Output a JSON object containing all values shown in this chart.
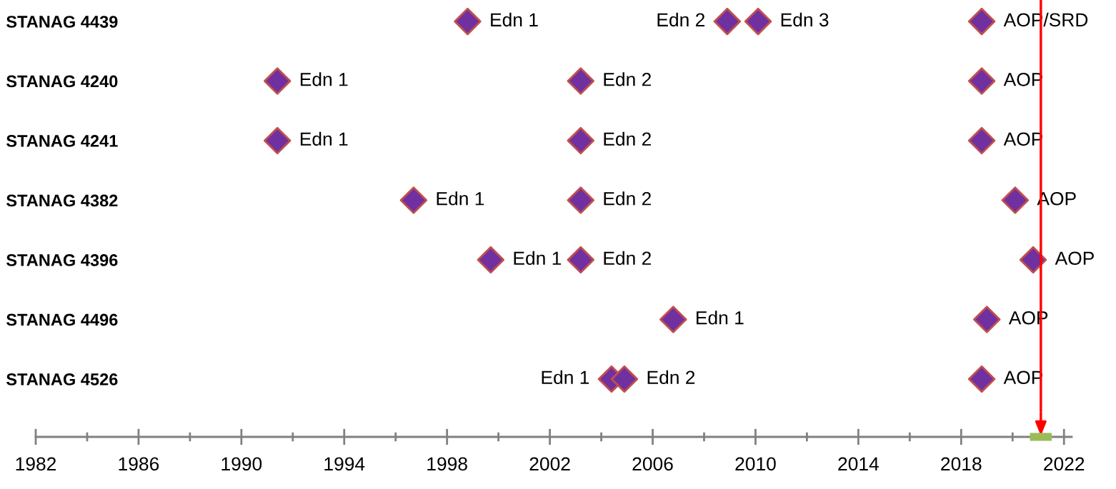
{
  "chart_data": {
    "type": "scatter",
    "categories": [
      "STANAG 4439",
      "STANAG 4240",
      "STANAG 4241",
      "STANAG 4382",
      "STANAG 4396",
      "STANAG 4496",
      "STANAG 4526"
    ],
    "orientation": "horizontal",
    "marker": "diamond",
    "tick_labels": "x",
    "grid": false,
    "xlim": [
      1982,
      2022.3
    ],
    "xticks": [
      1982,
      1986,
      1990,
      1994,
      1998,
      2002,
      2006,
      2010,
      2014,
      2018,
      2022
    ],
    "series": [
      {
        "color": "#7030a0",
        "values": [
          1998.8,
          1991.4,
          1991.4,
          1996.7,
          1999.7,
          2006.8,
          2004.4
        ],
        "value_labels": [
          "Edn 1",
          "Edn 1",
          "Edn 1",
          "Edn 1",
          "Edn 1",
          "Edn 1",
          "Edn 1"
        ]
      },
      {
        "color": "#7030a0",
        "values": [
          2008.9,
          2003.2,
          2003.2,
          2003.2,
          2003.2,
          2019.0,
          2004.9
        ],
        "value_labels": [
          "Edn 2",
          "Edn 2",
          "Edn 2",
          "Edn 2",
          "Edn 2",
          "AOP",
          "Edn 2"
        ]
      },
      {
        "color": "#7030a0",
        "values": [
          2010.1,
          2018.8,
          2018.8,
          2020.1,
          2020.8,
          null,
          2018.8
        ],
        "value_labels": [
          "Edn 3",
          "AOP",
          "AOP",
          "AOP",
          "AOP",
          null,
          "AOP"
        ]
      },
      {
        "color": "#7030a0",
        "values": [
          2018.8,
          null,
          null,
          null,
          null,
          null,
          null
        ],
        "value_labels": [
          "AOP/SRD",
          null,
          null,
          null,
          null,
          null,
          null
        ]
      }
    ],
    "ref_lines": [
      {
        "axis": "x",
        "value": 2021.1,
        "color": "#ff0000"
      }
    ]
  }
}
